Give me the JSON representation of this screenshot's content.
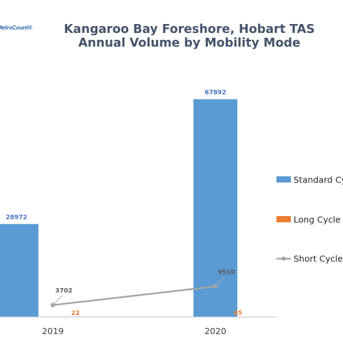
{
  "logo": {
    "text": "MetroCount®"
  },
  "chart_data": {
    "type": "bar",
    "title": [
      "Kangaroo Bay Foreshore, Hobart TAS",
      "Annual Volume by Mobility Mode"
    ],
    "categories": [
      "2019",
      "2020"
    ],
    "ylim": [
      0,
      80000
    ],
    "grid": false,
    "legend_position": "right",
    "series": [
      {
        "name": "Standard Cycle",
        "kind": "bar",
        "color": "#5b9bd5",
        "values": [
          28972,
          67892
        ]
      },
      {
        "name": "Long Cycle",
        "kind": "bar",
        "color": "#ed7d31",
        "values": [
          22,
          65
        ]
      },
      {
        "name": "Short Cycle",
        "kind": "line",
        "color": "#a5a5a5",
        "values": [
          3702,
          9510
        ]
      }
    ]
  }
}
